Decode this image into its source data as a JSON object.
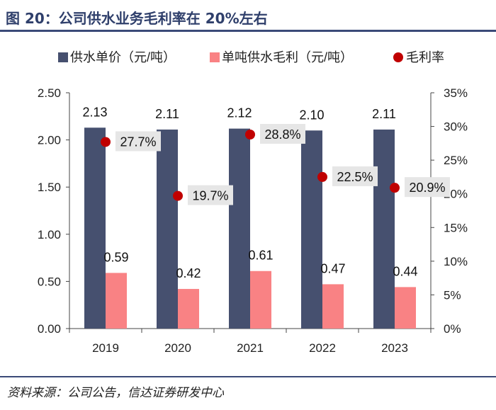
{
  "page": {
    "title": "图 20：公司供水业务毛利率在 20%左右",
    "source": "资料来源：公司公告，信达证券研发中心"
  },
  "chart_data": {
    "type": "bar",
    "categories": [
      "2019",
      "2020",
      "2021",
      "2022",
      "2023"
    ],
    "series": [
      {
        "name": "供水单价（元/吨）",
        "kind": "bar",
        "axis": "left",
        "color": "#46506f",
        "values": [
          2.13,
          2.11,
          2.12,
          2.1,
          2.11
        ],
        "labels": [
          "2.13",
          "2.11",
          "2.12",
          "2.10",
          "2.11"
        ]
      },
      {
        "name": "单吨供水毛利（元/吨）",
        "kind": "bar",
        "axis": "left",
        "color": "#f98284",
        "values": [
          0.59,
          0.42,
          0.61,
          0.47,
          0.44
        ],
        "labels": [
          "0.59",
          "0.42",
          "0.61",
          "0.47",
          "0.44"
        ]
      },
      {
        "name": "毛利率",
        "kind": "scatter",
        "axis": "right",
        "color": "#c00000",
        "values": [
          27.7,
          19.7,
          28.8,
          22.5,
          20.9
        ],
        "labels": [
          "27.7%",
          "19.7%",
          "28.8%",
          "22.5%",
          "20.9%"
        ]
      }
    ],
    "y_left": {
      "min": 0,
      "max": 2.5,
      "ticks": [
        "0.00",
        "0.50",
        "1.00",
        "1.50",
        "2.00",
        "2.50"
      ]
    },
    "y_right": {
      "min": 0,
      "max": 35,
      "ticks": [
        "0%",
        "5%",
        "10%",
        "15%",
        "20%",
        "25%",
        "30%",
        "35%"
      ]
    },
    "legend_position": "top",
    "grid": false
  }
}
